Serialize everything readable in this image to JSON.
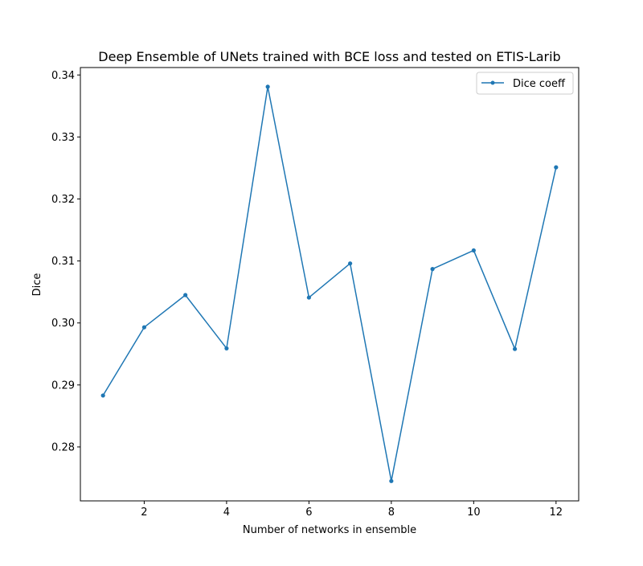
{
  "chart_data": {
    "type": "line",
    "title": "Deep Ensemble of UNets trained with BCE loss and tested on ETIS-Larib",
    "xlabel": "Number of networks in ensemble",
    "ylabel": "Dice",
    "x": [
      1,
      2,
      3,
      4,
      5,
      6,
      7,
      8,
      9,
      10,
      11,
      12
    ],
    "series": [
      {
        "name": "Dice coeff",
        "color": "#1f77b4",
        "marker": "circle",
        "values": [
          0.2883,
          0.2993,
          0.3045,
          0.2959,
          0.3381,
          0.3041,
          0.3096,
          0.2745,
          0.3087,
          0.3117,
          0.2958,
          0.3251
        ]
      }
    ],
    "xlim": [
      0.45,
      12.55
    ],
    "ylim": [
      0.2713,
      0.3412
    ],
    "xticks": [
      2,
      4,
      6,
      8,
      10,
      12
    ],
    "xtick_labels": [
      "2",
      "4",
      "6",
      "8",
      "10",
      "12"
    ],
    "yticks": [
      0.28,
      0.29,
      0.3,
      0.31,
      0.32,
      0.33,
      0.34
    ],
    "ytick_labels": [
      "0.28",
      "0.29",
      "0.30",
      "0.31",
      "0.32",
      "0.33",
      "0.34"
    ],
    "grid": false,
    "legend_position": "upper right"
  }
}
